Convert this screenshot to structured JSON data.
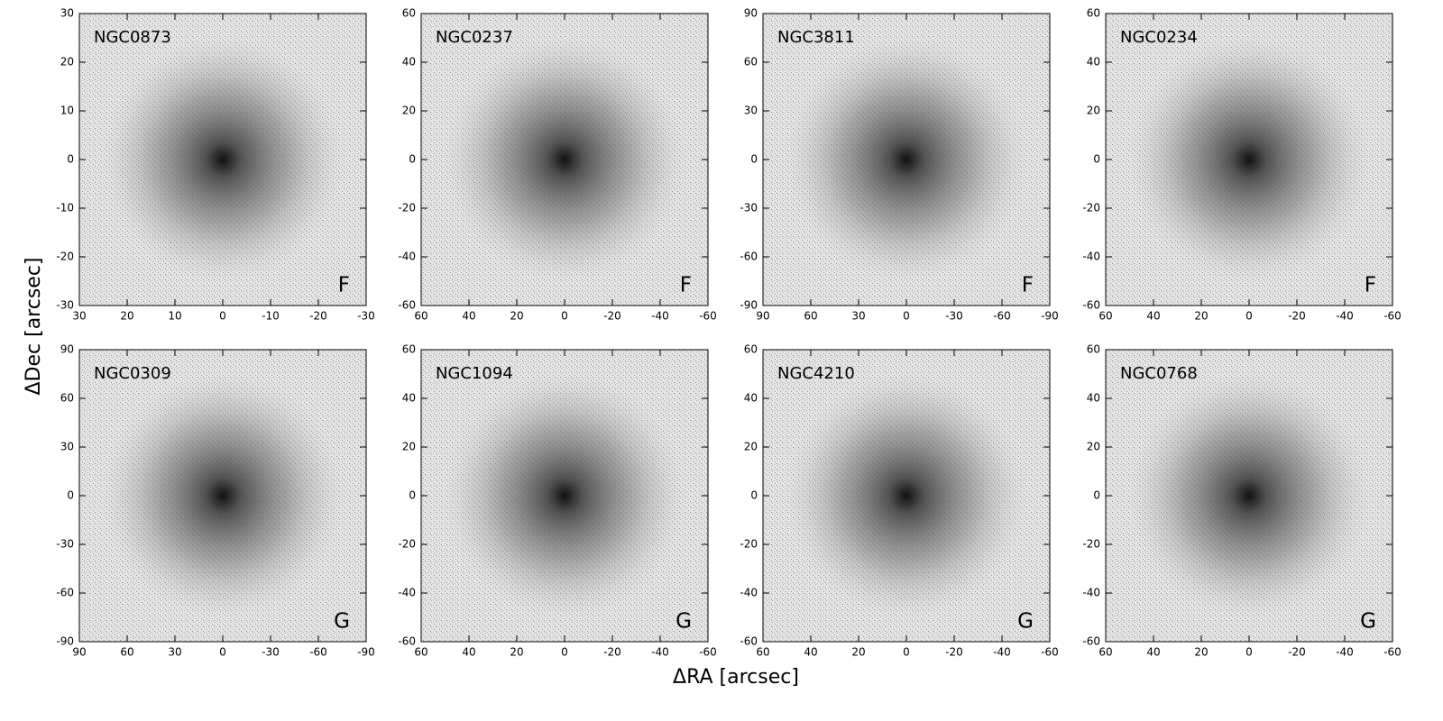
{
  "xlabel": "ΔRA [arcsec]",
  "ylabel": "ΔDec [arcsec]",
  "chart_data": [
    {
      "type": "image",
      "title": "NGC0873",
      "label": "F",
      "xlim": [
        30,
        -30
      ],
      "ylim": [
        -30,
        30
      ],
      "xticks": [
        30,
        20,
        10,
        0,
        -10,
        -20,
        -30
      ],
      "yticks": [
        -30,
        -20,
        -10,
        0,
        10,
        20,
        30
      ]
    },
    {
      "type": "image",
      "title": "NGC0237",
      "label": "F",
      "xlim": [
        60,
        -60
      ],
      "ylim": [
        -60,
        60
      ],
      "xticks": [
        60,
        40,
        20,
        0,
        -20,
        -40,
        -60
      ],
      "yticks": [
        -60,
        -40,
        -20,
        0,
        20,
        40,
        60
      ]
    },
    {
      "type": "image",
      "title": "NGC3811",
      "label": "F",
      "xlim": [
        90,
        -90
      ],
      "ylim": [
        -90,
        90
      ],
      "xticks": [
        90,
        60,
        30,
        0,
        -30,
        -60,
        -90
      ],
      "yticks": [
        -90,
        -60,
        -30,
        0,
        30,
        60,
        90
      ]
    },
    {
      "type": "image",
      "title": "NGC0234",
      "label": "F",
      "xlim": [
        60,
        -60
      ],
      "ylim": [
        -60,
        60
      ],
      "xticks": [
        60,
        40,
        20,
        0,
        -20,
        -40,
        -60
      ],
      "yticks": [
        -60,
        -40,
        -20,
        0,
        20,
        40,
        60
      ]
    },
    {
      "type": "image",
      "title": "NGC0309",
      "label": "G",
      "xlim": [
        90,
        -90
      ],
      "ylim": [
        -90,
        90
      ],
      "xticks": [
        90,
        60,
        30,
        0,
        -30,
        -60,
        -90
      ],
      "yticks": [
        -90,
        -60,
        -30,
        0,
        30,
        60,
        90
      ]
    },
    {
      "type": "image",
      "title": "NGC1094",
      "label": "G",
      "xlim": [
        60,
        -60
      ],
      "ylim": [
        -60,
        60
      ],
      "xticks": [
        60,
        40,
        20,
        0,
        -20,
        -40,
        -60
      ],
      "yticks": [
        -60,
        -40,
        -20,
        0,
        20,
        40,
        60
      ]
    },
    {
      "type": "image",
      "title": "NGC4210",
      "label": "G",
      "xlim": [
        60,
        -60
      ],
      "ylim": [
        -60,
        60
      ],
      "xticks": [
        60,
        40,
        20,
        0,
        -20,
        -40,
        -60
      ],
      "yticks": [
        -60,
        -40,
        -20,
        0,
        20,
        40,
        60
      ]
    },
    {
      "type": "image",
      "title": "NGC0768",
      "label": "G",
      "xlim": [
        60,
        -60
      ],
      "ylim": [
        -60,
        60
      ],
      "xticks": [
        60,
        40,
        20,
        0,
        -20,
        -40,
        -60
      ],
      "yticks": [
        -60,
        -40,
        -20,
        0,
        20,
        40,
        60
      ]
    }
  ]
}
